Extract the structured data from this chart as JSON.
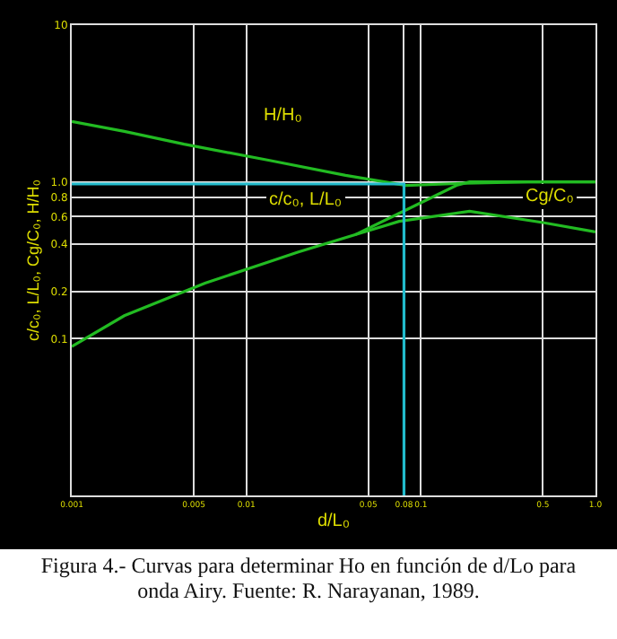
{
  "chart_data": {
    "type": "line",
    "xlabel": "d/L₀",
    "ylabel": "c/c₀, L/L₀, Cg/C₀, H/H₀",
    "log": "xy",
    "grid": true,
    "marker": "none",
    "line_style": "solid",
    "xlim": [
      0.001,
      1
    ],
    "xticks": [
      0.001,
      0.005,
      0.01,
      0.05,
      0.08,
      0.1,
      0.5,
      {
        "value": 1,
        "label": "1.0"
      }
    ],
    "ylim": [
      0.01,
      10
    ],
    "yticks": [
      0.1,
      0.2,
      0.4,
      0.6,
      0.8,
      {
        "value": 1,
        "label": "1.0"
      },
      10
    ],
    "series": [
      {
        "color": "#22bb22",
        "x": [
          0.001,
          0.002,
          0.0044,
          0.0136,
          0.037,
          0.082,
          0.18,
          0.41,
          1
        ],
        "values": [
          2.43,
          2.1,
          1.74,
          1.37,
          1.1,
          0.95,
          0.98,
          1.0,
          1.0
        ]
      },
      {
        "color": "#22bb22",
        "x": [
          0.001,
          0.002,
          0.0058,
          0.0136,
          0.0197,
          0.042,
          0.075,
          0.16,
          0.19,
          1
        ],
        "values": [
          0.089,
          0.14,
          0.226,
          0.31,
          0.356,
          0.46,
          0.63,
          0.95,
          1.0,
          1.0
        ]
      },
      {
        "color": "#22bb22",
        "x": [
          0.042,
          0.075,
          0.19,
          0.5,
          1
        ],
        "values": [
          0.46,
          0.56,
          0.65,
          0.55,
          0.48
        ]
      },
      {
        "color": "#22bbcc",
        "x": [
          0.001,
          0.08,
          0.08
        ],
        "values": [
          0.97,
          0.97,
          0.01
        ]
      }
    ],
    "annotations": [
      "H/H₀",
      "c/c₀, L/L₀",
      "Cg/C₀",
      "Figura 4.- Curvas para determinar Ho en función de d/Lo para onda Airy. Fuente: R. Narayanan, 1989."
    ]
  }
}
